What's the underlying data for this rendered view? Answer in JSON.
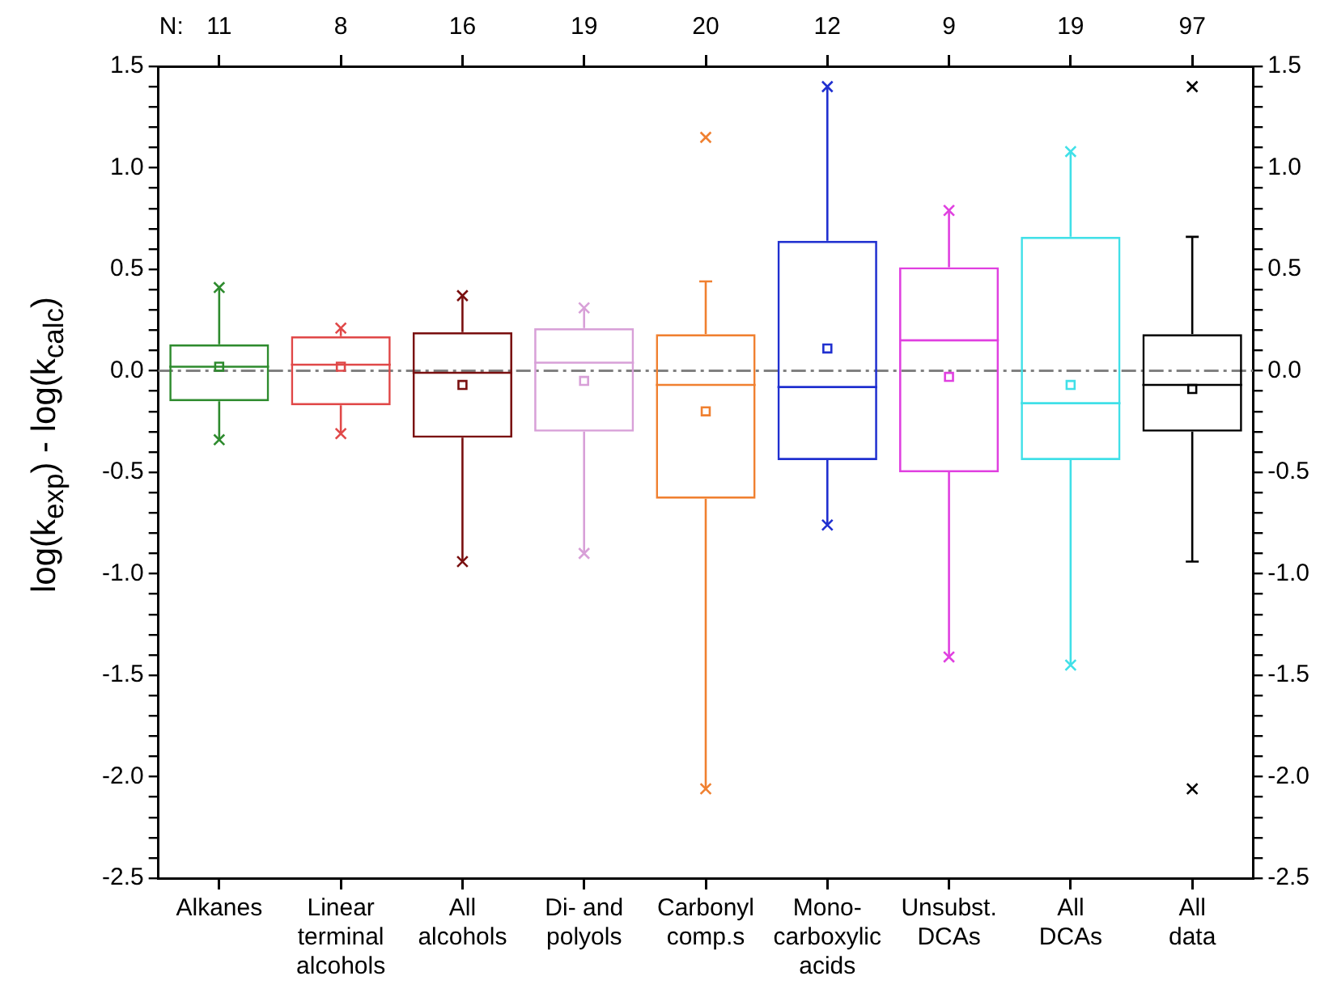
{
  "chart_data": {
    "type": "box",
    "ylabel": "log(k$_{exp}$) - log(k$_{calc}$)",
    "categories": [
      "Alkanes",
      "Linear\nterminal\nalcohols",
      "All\nalcohols",
      "Di- and\npolyols",
      "Carbonyl\ncomp.s",
      "Mono-\ncarboxylic\nacids",
      "Unsubst.\nDCAs",
      "All\nDCAs",
      "All\ndata"
    ],
    "colors": [
      "#2e8b2e",
      "#e04848",
      "#7a1010",
      "#d8a0d8",
      "#f08030",
      "#2030d0",
      "#e040e0",
      "#40e0e8",
      "#000000"
    ],
    "boxes": [
      {
        "low": -0.34,
        "q1": -0.15,
        "median": 0.02,
        "q3": 0.13,
        "high": 0.41,
        "mean": 0.02,
        "outliers": [
          0.41,
          -0.34
        ]
      },
      {
        "low": -0.31,
        "q1": -0.17,
        "median": 0.03,
        "q3": 0.17,
        "high": 0.21,
        "mean": 0.02,
        "outliers": [
          0.21,
          -0.31
        ]
      },
      {
        "low": -0.94,
        "q1": -0.33,
        "median": -0.01,
        "q3": 0.19,
        "high": 0.37,
        "mean": -0.07,
        "outliers": [
          0.37,
          -0.94
        ]
      },
      {
        "low": -0.9,
        "q1": -0.3,
        "median": 0.04,
        "q3": 0.21,
        "high": 0.31,
        "mean": -0.05,
        "outliers": [
          0.31,
          -0.9
        ]
      },
      {
        "low": -2.06,
        "q1": -0.63,
        "median": -0.07,
        "q3": 0.18,
        "high": 0.44,
        "mean": -0.2,
        "outliers": [
          1.15,
          -2.06
        ]
      },
      {
        "low": -0.76,
        "q1": -0.44,
        "median": -0.08,
        "q3": 0.64,
        "high": 1.4,
        "mean": 0.11,
        "outliers": [
          1.4,
          -0.76
        ]
      },
      {
        "low": -1.41,
        "q1": -0.5,
        "median": 0.15,
        "q3": 0.51,
        "high": 0.79,
        "mean": -0.03,
        "outliers": [
          0.79,
          -1.41
        ]
      },
      {
        "low": -1.45,
        "q1": -0.44,
        "median": -0.16,
        "q3": 0.66,
        "high": 1.08,
        "mean": -0.07,
        "outliers": [
          1.08,
          -1.45
        ]
      },
      {
        "low": -0.94,
        "q1": -0.3,
        "median": -0.07,
        "q3": 0.18,
        "high": 0.66,
        "mean": -0.09,
        "outliers": [
          1.4,
          -2.06
        ]
      }
    ],
    "ylim": [
      -2.5,
      1.5
    ],
    "yticks": [
      {
        "value": -2.5,
        "label": "-2.5"
      },
      {
        "value": -2.4,
        "label": null
      },
      {
        "value": -2.3,
        "label": null
      },
      {
        "value": -2.2,
        "label": null
      },
      {
        "value": -2.1,
        "label": null
      },
      {
        "value": -2.0,
        "label": "-2.0"
      },
      {
        "value": -1.9,
        "label": null
      },
      {
        "value": -1.8,
        "label": null
      },
      {
        "value": -1.7,
        "label": null
      },
      {
        "value": -1.6,
        "label": null
      },
      {
        "value": -1.5,
        "label": "-1.5"
      },
      {
        "value": -1.4,
        "label": null
      },
      {
        "value": -1.3,
        "label": null
      },
      {
        "value": -1.2,
        "label": null
      },
      {
        "value": -1.1,
        "label": null
      },
      {
        "value": -1.0,
        "label": "-1.0"
      },
      {
        "value": -0.9,
        "label": null
      },
      {
        "value": -0.8,
        "label": null
      },
      {
        "value": -0.7,
        "label": null
      },
      {
        "value": -0.6,
        "label": null
      },
      {
        "value": -0.5,
        "label": "-0.5"
      },
      {
        "value": -0.4,
        "label": null
      },
      {
        "value": -0.3,
        "label": null
      },
      {
        "value": -0.2,
        "label": null
      },
      {
        "value": -0.1,
        "label": null
      },
      {
        "value": 0,
        "label": "0.0"
      },
      {
        "value": 0.1,
        "label": null
      },
      {
        "value": 0.2,
        "label": null
      },
      {
        "value": 0.3,
        "label": null
      },
      {
        "value": 0.4,
        "label": null
      },
      {
        "value": 0.5,
        "label": "0.5"
      },
      {
        "value": 0.6,
        "label": null
      },
      {
        "value": 0.7,
        "label": null
      },
      {
        "value": 0.8,
        "label": null
      },
      {
        "value": 0.9,
        "label": null
      },
      {
        "value": 1.0,
        "label": "1.0"
      },
      {
        "value": 1.1,
        "label": null
      },
      {
        "value": 1.2,
        "label": null
      },
      {
        "value": 1.3,
        "label": null
      },
      {
        "value": 1.4,
        "label": null
      },
      {
        "value": 1.5,
        "label": "1.5"
      }
    ],
    "y2lim": [
      -2.5,
      1.5
    ],
    "y2ticks": [
      {
        "value": -2.5,
        "label": "-2.5"
      },
      {
        "value": -2.4,
        "label": null
      },
      {
        "value": -2.3,
        "label": null
      },
      {
        "value": -2.2,
        "label": null
      },
      {
        "value": -2.1,
        "label": null
      },
      {
        "value": -2.0,
        "label": "-2.0"
      },
      {
        "value": -1.9,
        "label": null
      },
      {
        "value": -1.8,
        "label": null
      },
      {
        "value": -1.7,
        "label": null
      },
      {
        "value": -1.6,
        "label": null
      },
      {
        "value": -1.5,
        "label": "-1.5"
      },
      {
        "value": -1.4,
        "label": null
      },
      {
        "value": -1.3,
        "label": null
      },
      {
        "value": -1.2,
        "label": null
      },
      {
        "value": -1.1,
        "label": null
      },
      {
        "value": -1.0,
        "label": "-1.0"
      },
      {
        "value": -0.9,
        "label": null
      },
      {
        "value": -0.8,
        "label": null
      },
      {
        "value": -0.7,
        "label": null
      },
      {
        "value": -0.6,
        "label": null
      },
      {
        "value": -0.5,
        "label": "-0.5"
      },
      {
        "value": -0.4,
        "label": null
      },
      {
        "value": -0.3,
        "label": null
      },
      {
        "value": -0.2,
        "label": null
      },
      {
        "value": -0.1,
        "label": null
      },
      {
        "value": 0,
        "label": "0.0"
      },
      {
        "value": 0.1,
        "label": null
      },
      {
        "value": 0.2,
        "label": null
      },
      {
        "value": 0.3,
        "label": null
      },
      {
        "value": 0.4,
        "label": null
      },
      {
        "value": 0.5,
        "label": "0.5"
      },
      {
        "value": 0.6,
        "label": null
      },
      {
        "value": 0.7,
        "label": null
      },
      {
        "value": 0.8,
        "label": null
      },
      {
        "value": 0.9,
        "label": null
      },
      {
        "value": 1.0,
        "label": "1.0"
      },
      {
        "value": 1.1,
        "label": null
      },
      {
        "value": 1.2,
        "label": null
      },
      {
        "value": 1.3,
        "label": null
      },
      {
        "value": 1.4,
        "label": null
      },
      {
        "value": 1.5,
        "label": "1.5"
      }
    ],
    "ref_lines": [
      {
        "axis": "y",
        "value": 0,
        "color": "#808080",
        "line_style": "dashed"
      }
    ],
    "annotations": [
      "N:",
      "11",
      "8",
      "16",
      "19",
      "20",
      "12",
      "9",
      "19",
      "97"
    ],
    "marker": "cross",
    "legend": false,
    "grid": false
  }
}
